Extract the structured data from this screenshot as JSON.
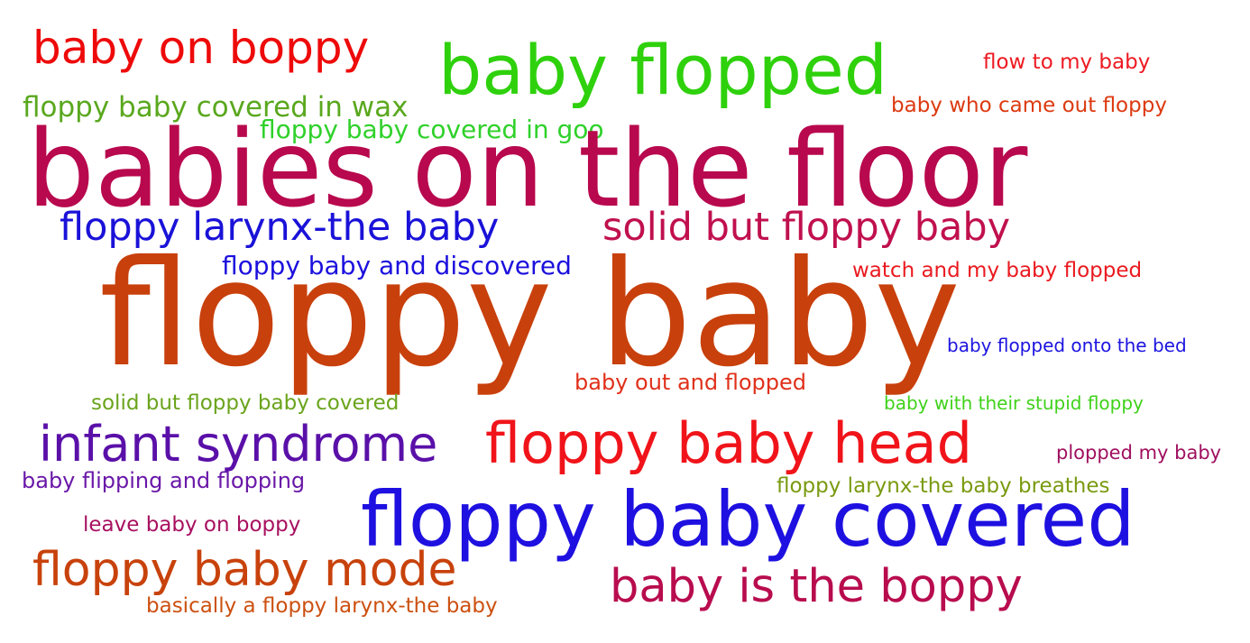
{
  "words": [
    {
      "text": "baby on boppy",
      "color": "#ee0a0a"
    },
    {
      "text": "baby flopped",
      "color": "#2ed10c"
    },
    {
      "text": "flow to my baby",
      "color": "#ee1a22"
    },
    {
      "text": "floppy baby covered in wax",
      "color": "#5aa81e"
    },
    {
      "text": "baby who came out floppy",
      "color": "#dc3a10"
    },
    {
      "text": "floppy baby covered in goo",
      "color": "#2fd12a"
    },
    {
      "text": "babies on the floor",
      "color": "#b8084e"
    },
    {
      "text": "floppy larynx-the baby",
      "color": "#1a12d8"
    },
    {
      "text": "solid but floppy baby",
      "color": "#c0104e"
    },
    {
      "text": "floppy baby and discovered",
      "color": "#1c10dd"
    },
    {
      "text": "watch and my baby flopped",
      "color": "#ea1a20"
    },
    {
      "text": "floppy baby",
      "color": "#c8400c"
    },
    {
      "text": "baby flopped onto the bed",
      "color": "#1c14e0"
    },
    {
      "text": "baby out and flopped",
      "color": "#e0301a"
    },
    {
      "text": "solid but floppy baby covered",
      "color": "#6aa41c"
    },
    {
      "text": "baby with their stupid floppy",
      "color": "#3fd21a"
    },
    {
      "text": "infant syndrome",
      "color": "#5a10a8"
    },
    {
      "text": "floppy baby head",
      "color": "#f0141a"
    },
    {
      "text": "plopped my baby",
      "color": "#a01060"
    },
    {
      "text": "baby flipping and flopping",
      "color": "#6a18a8"
    },
    {
      "text": "floppy larynx-the baby breathes",
      "color": "#7a9a10"
    },
    {
      "text": "floppy baby covered",
      "color": "#1e10e0"
    },
    {
      "text": "leave baby on boppy",
      "color": "#a81060"
    },
    {
      "text": "floppy baby mode",
      "color": "#c8420c"
    },
    {
      "text": "baby is the boppy",
      "color": "#b80c4e"
    },
    {
      "text": "basically a floppy larynx-the baby",
      "color": "#cc5010"
    }
  ]
}
